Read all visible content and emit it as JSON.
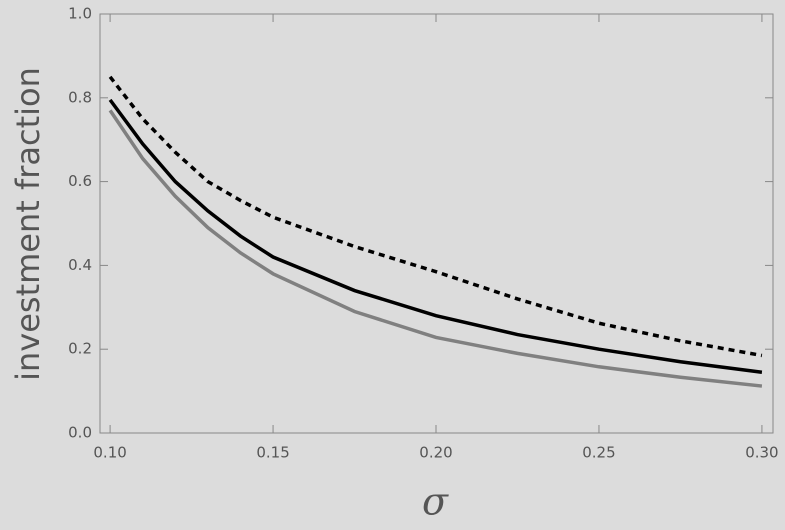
{
  "chart_data": {
    "type": "line",
    "x_label": "σ",
    "y_label": "investment fraction",
    "x": [
      0.1,
      0.11,
      0.12,
      0.13,
      0.14,
      0.15,
      0.175,
      0.2,
      0.225,
      0.25,
      0.275,
      0.3
    ],
    "series": [
      {
        "color": "#000000",
        "dashed": true,
        "values": [
          0.85,
          0.75,
          0.67,
          0.6,
          0.555,
          0.515,
          0.445,
          0.385,
          0.32,
          0.262,
          0.22,
          0.185
        ]
      },
      {
        "color": "#000000",
        "dashed": false,
        "values": [
          0.795,
          0.69,
          0.6,
          0.53,
          0.47,
          0.42,
          0.34,
          0.28,
          0.235,
          0.2,
          0.17,
          0.145
        ]
      },
      {
        "color": "#808080",
        "dashed": false,
        "values": [
          0.77,
          0.655,
          0.565,
          0.49,
          0.43,
          0.38,
          0.29,
          0.228,
          0.19,
          0.158,
          0.133,
          0.112
        ]
      }
    ],
    "xlim": [
      0.0969,
      0.3034
    ],
    "ylim": [
      0,
      1
    ],
    "xticks": [
      {
        "value": 0.1,
        "label": "0.10"
      },
      {
        "value": 0.15,
        "label": "0.15"
      },
      {
        "value": 0.2,
        "label": "0.20"
      },
      {
        "value": 0.25,
        "label": "0.25"
      },
      {
        "value": 0.3,
        "label": "0.30"
      }
    ],
    "yticks": [
      {
        "value": 0,
        "label": "0.0"
      },
      0.2,
      0.4,
      0.6,
      0.8,
      {
        "value": 1,
        "label": "1.0"
      }
    ],
    "grid": false
  }
}
